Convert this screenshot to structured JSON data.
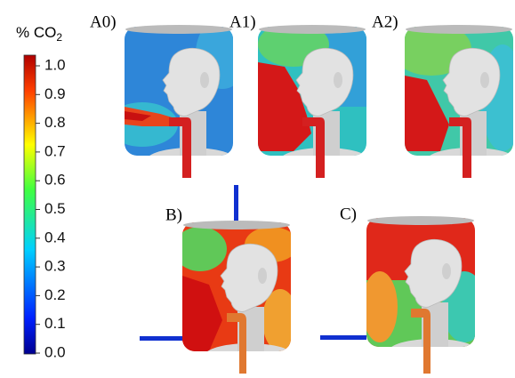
{
  "colorbar": {
    "title": "% CO",
    "title_sub": "2",
    "ticks": [
      "1.0",
      "0.9",
      "0.8",
      "0.7",
      "0.6",
      "0.5",
      "0.4",
      "0.3",
      "0.2",
      "0.1",
      "0.0"
    ]
  },
  "panels": [
    {
      "label": "A0)"
    },
    {
      "label": "A1)"
    },
    {
      "label": "A2)"
    },
    {
      "label": "B)"
    },
    {
      "label": "C)"
    }
  ]
}
